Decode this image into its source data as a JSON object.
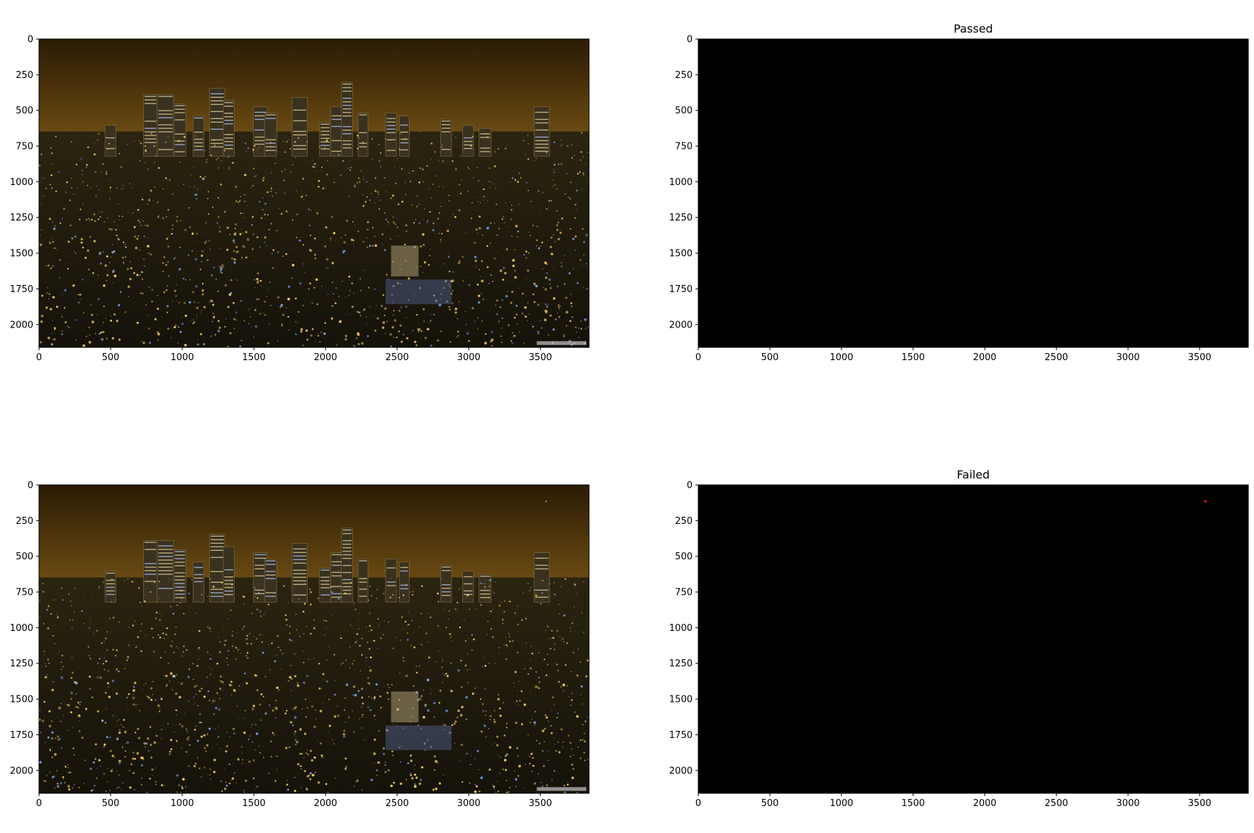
{
  "colors": {
    "sky_top": "#2a1b04",
    "sky_horizon": "#6a4a12",
    "city_dark": "#1b1608",
    "light_warm": "#ffd66a",
    "light_blue": "#7fb0ff",
    "mask_background": "#000000",
    "failed_marker": "#ff1a1a"
  },
  "chart_data": [
    {
      "type": "heatmap",
      "content": "photo",
      "title": "",
      "xlim": [
        0,
        3840
      ],
      "ylim": [
        2160,
        0
      ],
      "xticks": [
        0,
        500,
        1000,
        1500,
        2000,
        2500,
        3000,
        3500
      ],
      "yticks": [
        0,
        250,
        500,
        750,
        1000,
        1250,
        1500,
        1750,
        2000
      ],
      "markers": []
    },
    {
      "type": "heatmap",
      "content": "mask",
      "title": "Passed",
      "xlim": [
        0,
        3840
      ],
      "ylim": [
        2160,
        0
      ],
      "xticks": [
        0,
        500,
        1000,
        1500,
        2000,
        2500,
        3000,
        3500
      ],
      "yticks": [
        0,
        250,
        500,
        750,
        1000,
        1250,
        1500,
        1750,
        2000
      ],
      "markers": []
    },
    {
      "type": "heatmap",
      "content": "photo",
      "title": "",
      "xlim": [
        0,
        3840
      ],
      "ylim": [
        2160,
        0
      ],
      "xticks": [
        0,
        500,
        1000,
        1500,
        2000,
        2500,
        3000,
        3500
      ],
      "yticks": [
        0,
        250,
        500,
        750,
        1000,
        1250,
        1500,
        1750,
        2000
      ],
      "markers": [
        {
          "x": 3540,
          "y": 115
        }
      ]
    },
    {
      "type": "heatmap",
      "content": "mask",
      "title": "Failed",
      "xlim": [
        0,
        3840
      ],
      "ylim": [
        2160,
        0
      ],
      "xticks": [
        0,
        500,
        1000,
        1500,
        2000,
        2500,
        3000,
        3500
      ],
      "yticks": [
        0,
        250,
        500,
        750,
        1000,
        1250,
        1500,
        1750,
        2000
      ],
      "markers": [
        {
          "x": 3540,
          "y": 115
        }
      ]
    }
  ]
}
